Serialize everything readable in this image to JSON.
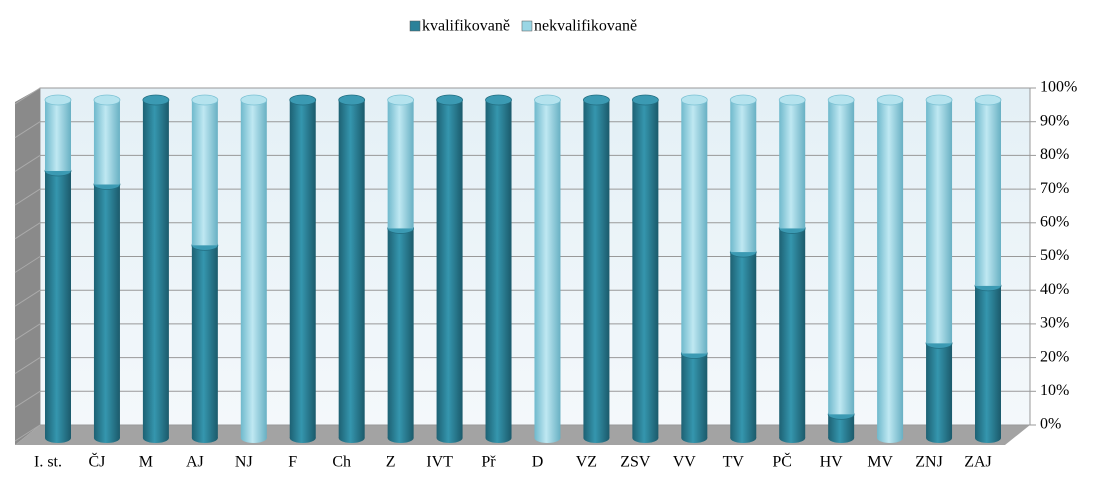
{
  "chart_data": {
    "type": "bar3d_stacked",
    "categories": [
      "I. st.",
      "ČJ",
      "M",
      "AJ",
      "NJ",
      "F",
      "Ch",
      "Z",
      "IVT",
      "Př",
      "D",
      "VZ",
      "ZSV",
      "VV",
      "TV",
      "PČ",
      "HV",
      "MV",
      "ZNJ",
      "ZAJ"
    ],
    "series": [
      {
        "name": "kvalifikovaně",
        "color": "#2b8199",
        "values": [
          79,
          75,
          100,
          57,
          0,
          100,
          100,
          62,
          100,
          100,
          0,
          100,
          100,
          25,
          55,
          62,
          7,
          0,
          28,
          45
        ]
      },
      {
        "name": "nekvalifikovaně",
        "color": "#9ad6e5",
        "values": [
          21,
          25,
          0,
          43,
          100,
          0,
          0,
          38,
          0,
          0,
          100,
          0,
          0,
          75,
          45,
          38,
          93,
          100,
          72,
          55
        ]
      }
    ],
    "ylim": [
      0,
      100
    ],
    "yticks": [
      {
        "value": 0,
        "label": "0%"
      },
      {
        "value": 10,
        "label": "10%"
      },
      {
        "value": 20,
        "label": "20%"
      },
      {
        "value": 30,
        "label": "30%"
      },
      {
        "value": 40,
        "label": "40%"
      },
      {
        "value": 50,
        "label": "50%"
      },
      {
        "value": 60,
        "label": "60%"
      },
      {
        "value": 70,
        "label": "70%"
      },
      {
        "value": 80,
        "label": "80%"
      },
      {
        "value": 90,
        "label": "90%"
      },
      {
        "value": 100,
        "label": "100%"
      }
    ],
    "grid": true,
    "legend": "top"
  }
}
